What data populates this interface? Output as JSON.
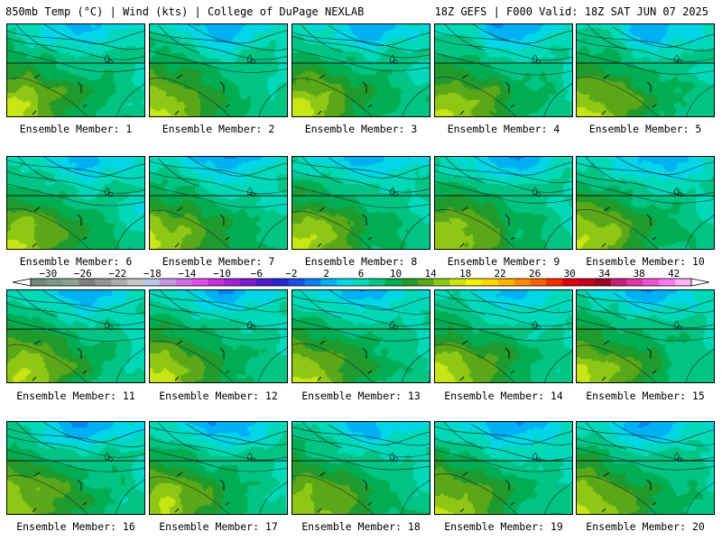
{
  "header": {
    "left": "850mb Temp (°C) | Wind (kts) | College of DuPage NEXLAB",
    "right": "18Z GEFS | F000 Valid: 18Z SAT JUN 07 2025"
  },
  "panels": [
    {
      "member": 1,
      "label": "Ensemble Member: 1"
    },
    {
      "member": 2,
      "label": "Ensemble Member: 2"
    },
    {
      "member": 3,
      "label": "Ensemble Member: 3"
    },
    {
      "member": 4,
      "label": "Ensemble Member: 4"
    },
    {
      "member": 5,
      "label": "Ensemble Member: 5"
    },
    {
      "member": 6,
      "label": "Ensemble Member: 6"
    },
    {
      "member": 7,
      "label": "Ensemble Member: 7"
    },
    {
      "member": 8,
      "label": "Ensemble Member: 8"
    },
    {
      "member": 9,
      "label": "Ensemble Member: 9"
    },
    {
      "member": 10,
      "label": "Ensemble Member: 10"
    },
    {
      "member": 11,
      "label": "Ensemble Member: 11"
    },
    {
      "member": 12,
      "label": "Ensemble Member: 12"
    },
    {
      "member": 13,
      "label": "Ensemble Member: 13"
    },
    {
      "member": 14,
      "label": "Ensemble Member: 14"
    },
    {
      "member": 15,
      "label": "Ensemble Member: 15"
    },
    {
      "member": 16,
      "label": "Ensemble Member: 16"
    },
    {
      "member": 17,
      "label": "Ensemble Member: 17"
    },
    {
      "member": 18,
      "label": "Ensemble Member: 18"
    },
    {
      "member": 19,
      "label": "Ensemble Member: 19"
    },
    {
      "member": 20,
      "label": "Ensemble Member: 20"
    }
  ],
  "colorbar": {
    "labels": [
      "−30",
      "−26",
      "−22",
      "−18",
      "−14",
      "−10",
      "−6",
      "−2",
      "2",
      "6",
      "10",
      "14",
      "18",
      "22",
      "26",
      "30",
      "34",
      "38",
      "42"
    ],
    "label_values": [
      -30,
      -26,
      -22,
      -18,
      -14,
      -10,
      -6,
      -2,
      2,
      6,
      10,
      14,
      18,
      22,
      26,
      30,
      34,
      38,
      42
    ],
    "min": -32,
    "max": 44,
    "step": 2,
    "colors": [
      "#6f8a78",
      "#7d9784",
      "#8ea492",
      "#7e7e7e",
      "#959595",
      "#adadad",
      "#c6c6c6",
      "#b8c7e6",
      "#c398e0",
      "#d36de5",
      "#e24aea",
      "#c72ee0",
      "#a421d6",
      "#7c1ccf",
      "#4d1ccc",
      "#2525d6",
      "#1550e8",
      "#0a80f0",
      "#00b0f4",
      "#00d6e6",
      "#00d9b8",
      "#00c483",
      "#00ad52",
      "#1f9a2d",
      "#5aa818",
      "#8fc814",
      "#c8e614",
      "#f2f200",
      "#ffd800",
      "#ffb400",
      "#ff8c00",
      "#ff5f00",
      "#f52c00",
      "#e00010",
      "#c4001e",
      "#a00028",
      "#c81e7c",
      "#e036a8",
      "#f052d2",
      "#ff78f0",
      "#ffb4f8"
    ]
  }
}
